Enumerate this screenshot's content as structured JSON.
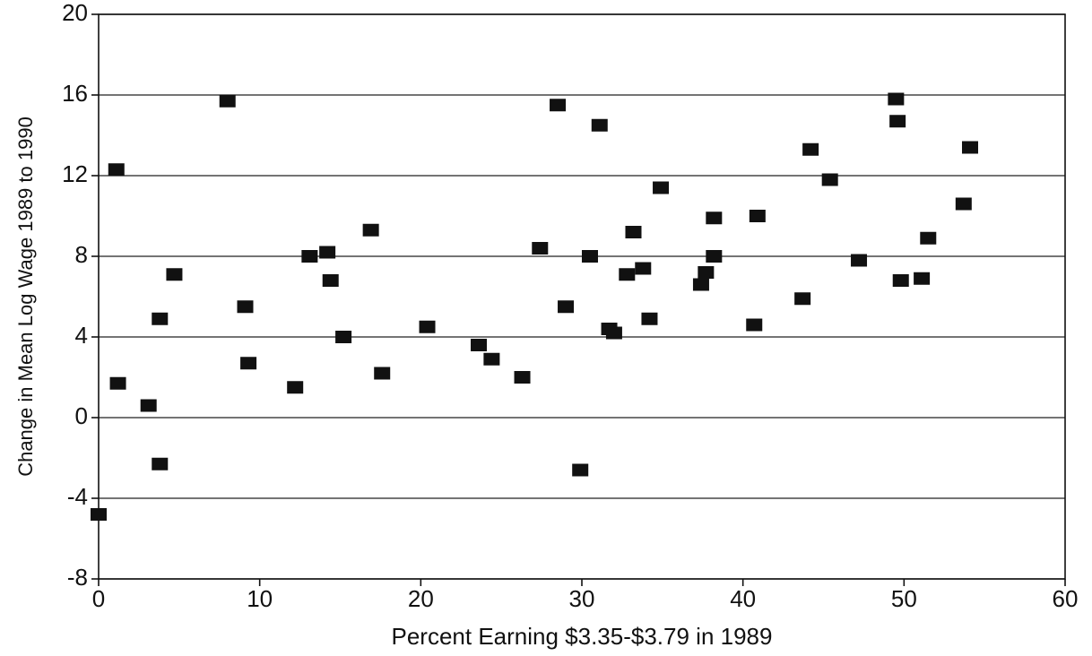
{
  "chart_data": {
    "type": "scatter",
    "x_label": "Percent Earning $3.35-$3.79 in 1989",
    "y_label": "Change in Mean Log Wage 1989 to 1990",
    "xlim": [
      0,
      60
    ],
    "xticks": [
      0,
      10,
      20,
      30,
      40,
      50,
      60
    ],
    "ylim": [
      -8,
      20
    ],
    "yticks": [
      -8,
      -4,
      0,
      4,
      8,
      12,
      16,
      20
    ],
    "grid": true,
    "color": "#111111",
    "x": [
      0,
      1.1,
      1.2,
      3.1,
      3.8,
      3.8,
      4.7,
      8.0,
      9.1,
      9.3,
      12.2,
      13.1,
      14.2,
      14.4,
      15.2,
      16.9,
      17.6,
      20.4,
      23.6,
      24.4,
      26.3,
      27.4,
      28.5,
      29.0,
      29.9,
      30.5,
      31.1,
      31.7,
      32.0,
      32.8,
      33.2,
      33.8,
      34.2,
      34.9,
      37.4,
      37.7,
      38.2,
      38.2,
      40.7,
      40.9,
      43.7,
      44.2,
      45.4,
      47.2,
      49.5,
      49.6,
      49.8,
      51.1,
      51.5,
      53.7,
      54.1
    ],
    "values": [
      -4.8,
      12.3,
      1.7,
      0.6,
      4.9,
      -2.3,
      7.1,
      15.7,
      5.5,
      2.7,
      1.5,
      8.0,
      8.2,
      6.8,
      4.0,
      9.3,
      2.2,
      4.5,
      3.6,
      2.9,
      2.0,
      8.4,
      15.5,
      5.5,
      -2.6,
      8.0,
      14.5,
      4.4,
      4.2,
      7.1,
      9.2,
      7.4,
      4.9,
      11.4,
      6.6,
      7.2,
      8.0,
      9.9,
      4.6,
      10.0,
      5.9,
      13.3,
      11.8,
      7.8,
      15.8,
      14.7,
      6.8,
      6.9,
      8.9,
      10.6,
      13.4
    ]
  }
}
